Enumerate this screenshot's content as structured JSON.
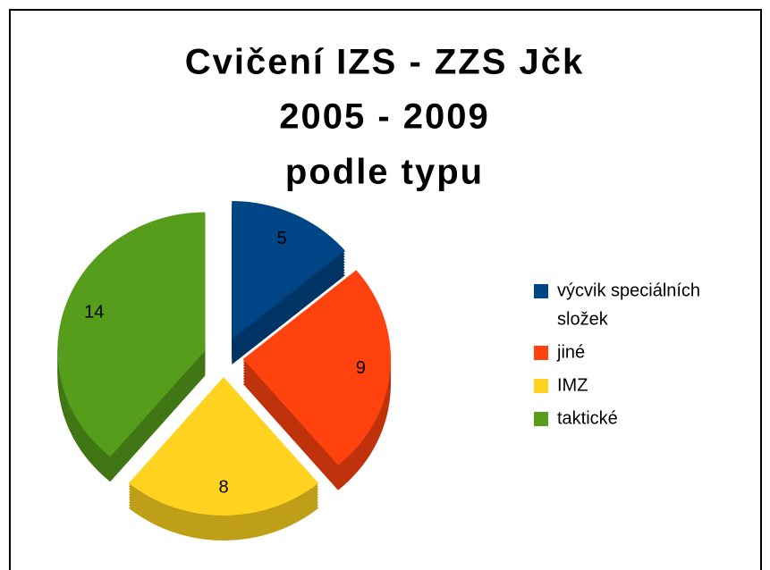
{
  "chart_data": {
    "type": "pie",
    "title": [
      "Cvičení IZS - ZZS Jčk",
      "2005 - 2009",
      "podle typu"
    ],
    "categories": [
      [
        "výcvik speciálních",
        "složek"
      ],
      [
        "jiné"
      ],
      [
        "IMZ"
      ],
      [
        "taktické"
      ]
    ],
    "values": [
      5,
      9,
      8,
      14
    ],
    "colors": [
      "#004586",
      "#ff420e",
      "#ffd320",
      "#579d1c"
    ],
    "legend": "right"
  }
}
